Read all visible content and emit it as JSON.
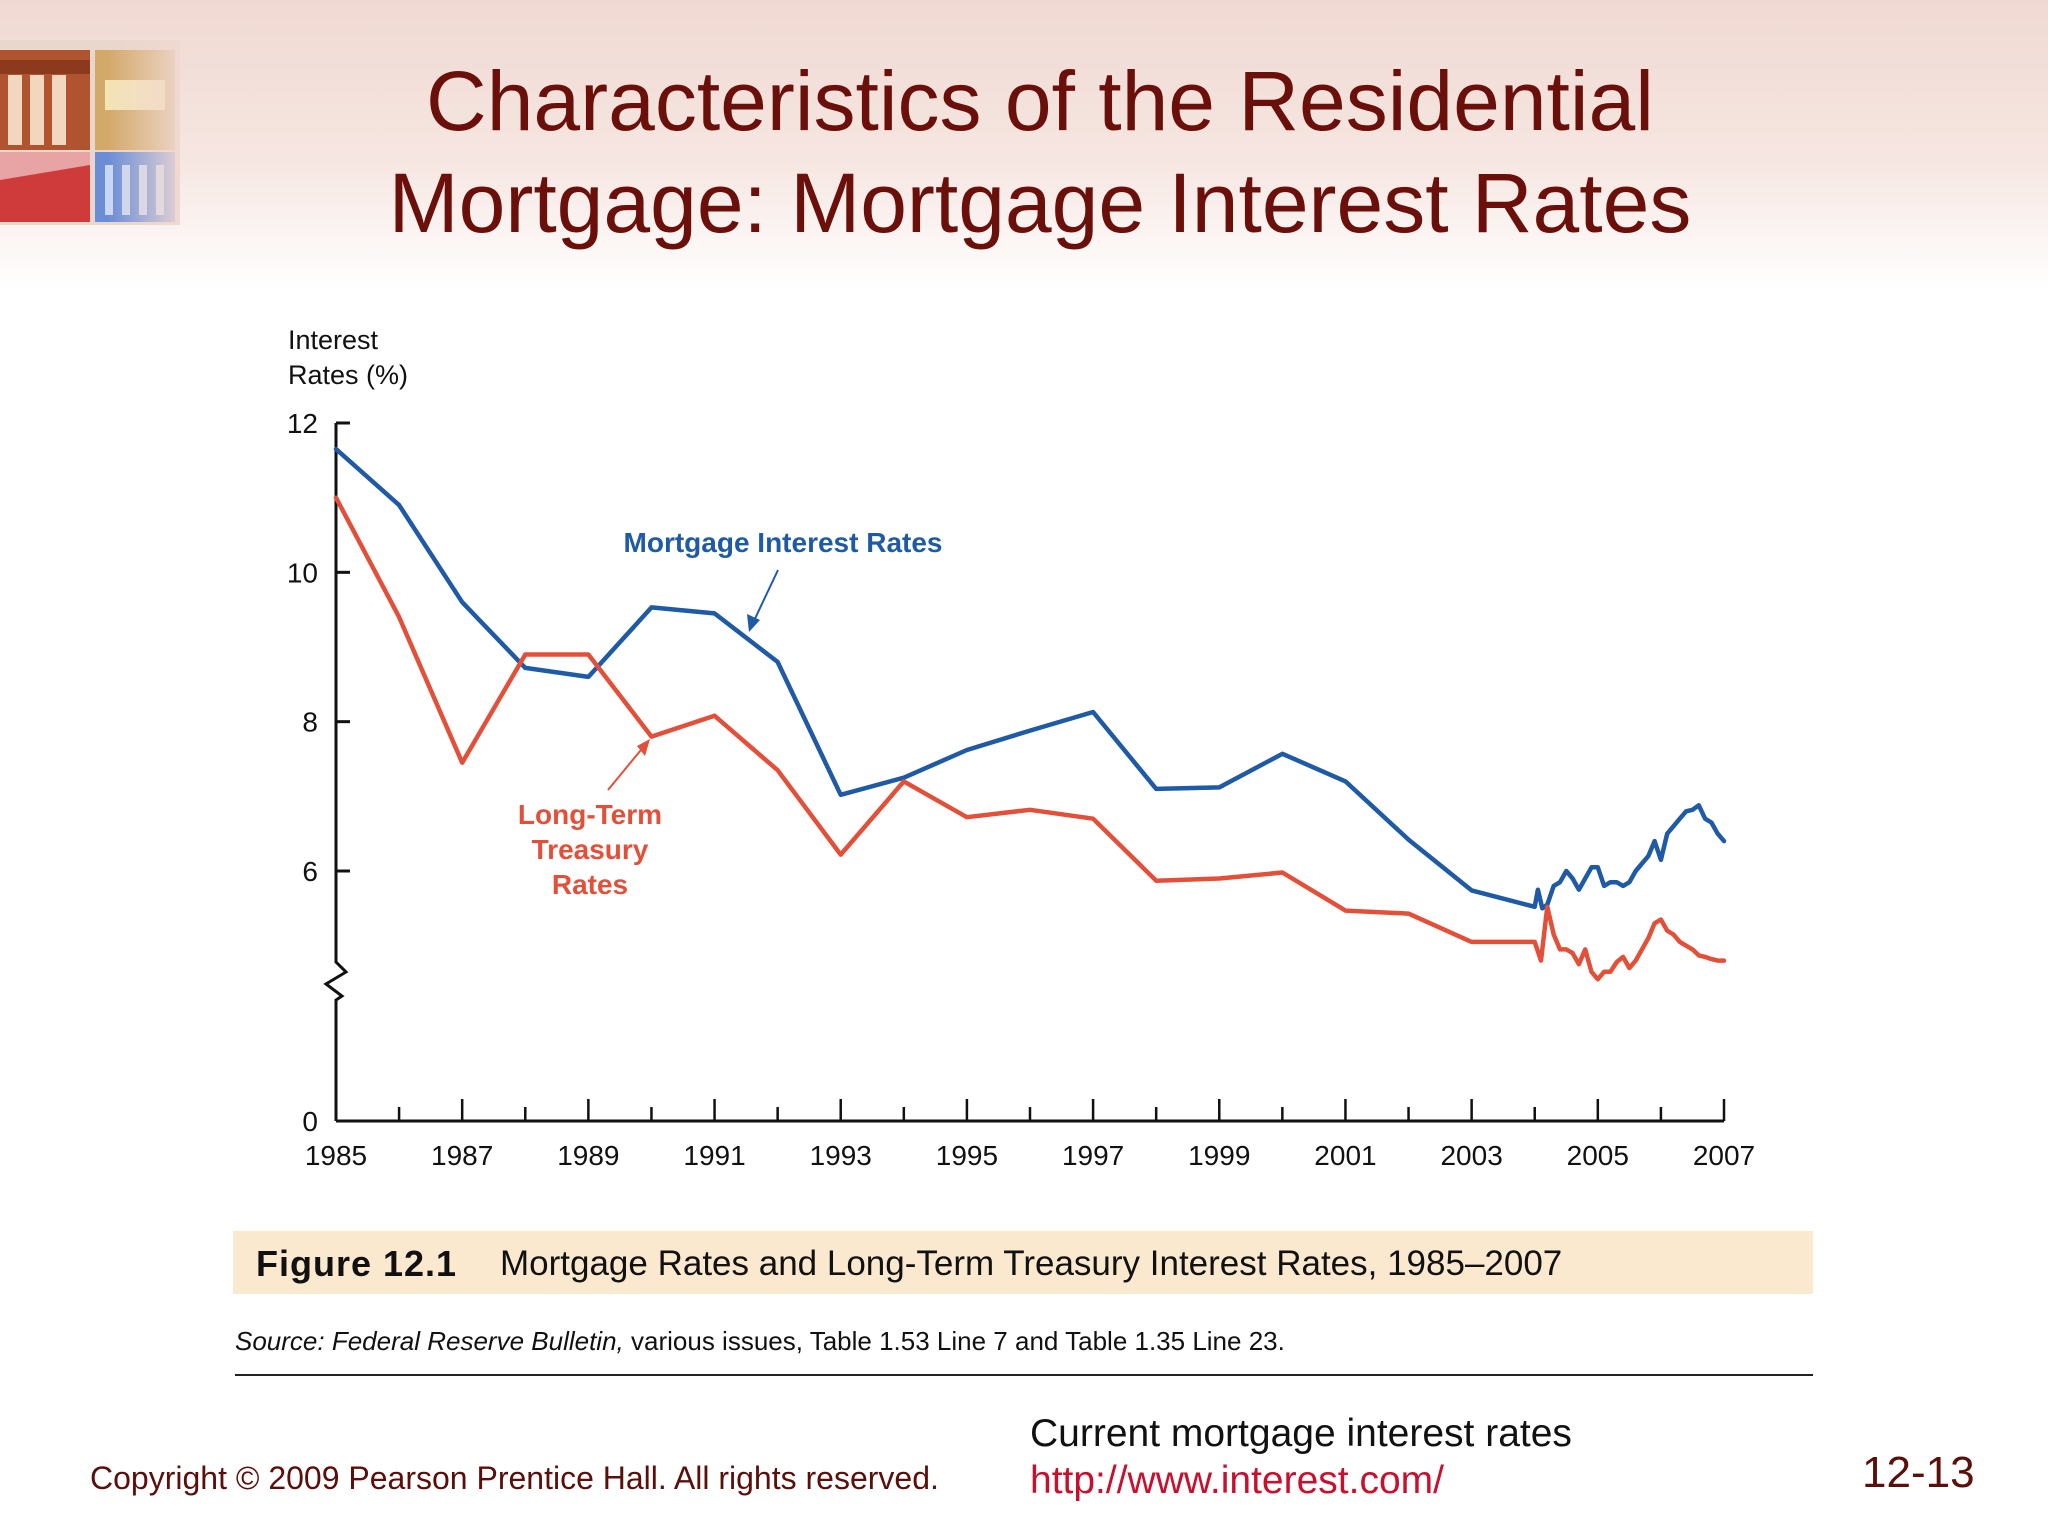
{
  "slide": {
    "title_line1": "Characteristics of the Residential",
    "title_line2": "Mortgage: Mortgage Interest Rates",
    "copyright": "Copyright © 2009 Pearson Prentice Hall. All rights reserved.",
    "note": "Current mortgage interest rates",
    "link": "http://www.interest.com/",
    "page_number": "12-13"
  },
  "figure": {
    "label": "Figure 12.1",
    "caption": "Mortgage Rates and Long-Term Treasury Interest Rates, 1985–2007",
    "source_prefix": "Source:",
    "source_italic": "Federal Reserve Bulletin,",
    "source_rest": "various issues, Table 1.53 Line 7 and Table 1.35 Line 23."
  },
  "colors": {
    "mortgage": "#1f5aa6",
    "treasury": "#e3503a",
    "title": "#6b0f0a"
  },
  "chart_data": {
    "type": "line",
    "ylabel_line1": "Interest",
    "ylabel_line2": "Rates (%)",
    "yticks": [
      0,
      6,
      8,
      10,
      12
    ],
    "axis_break": "between 0 and 6",
    "xticks": [
      "1985",
      "1987",
      "1989",
      "1991",
      "1993",
      "1995",
      "1997",
      "1999",
      "2001",
      "2003",
      "2005",
      "2007"
    ],
    "ylim": [
      0,
      12
    ],
    "xlim": [
      1985,
      2007
    ],
    "series": [
      {
        "name": "Mortgage Interest Rates",
        "color": "#1f5aa6",
        "x": [
          1985,
          1986,
          1987,
          1988,
          1989,
          1990,
          1991,
          1992,
          1993,
          1994,
          1995,
          1996,
          1997,
          1998,
          1999,
          2000,
          2001,
          2002,
          2003,
          2004.0,
          2004.05,
          2004.12,
          2004.2,
          2004.3,
          2004.4,
          2004.5,
          2004.6,
          2004.7,
          2004.8,
          2004.9,
          2005.0,
          2005.1,
          2005.2,
          2005.3,
          2005.4,
          2005.5,
          2005.6,
          2005.7,
          2005.8,
          2005.9,
          2006.0,
          2006.1,
          2006.2,
          2006.3,
          2006.4,
          2006.5,
          2006.6,
          2006.7,
          2006.8,
          2006.9,
          2007.0
        ],
        "y": [
          11.65,
          10.9,
          9.6,
          8.72,
          8.6,
          9.53,
          9.45,
          8.8,
          7.02,
          7.25,
          7.62,
          7.88,
          8.13,
          7.1,
          7.12,
          7.57,
          7.2,
          6.42,
          5.74,
          5.52,
          5.75,
          5.5,
          5.55,
          5.8,
          5.85,
          6.0,
          5.9,
          5.75,
          5.9,
          6.05,
          6.05,
          5.8,
          5.85,
          5.85,
          5.8,
          5.85,
          6.0,
          6.1,
          6.2,
          6.4,
          6.15,
          6.5,
          6.6,
          6.7,
          6.8,
          6.82,
          6.88,
          6.7,
          6.65,
          6.5,
          6.4
        ]
      },
      {
        "name": "Long-Term Treasury Rates",
        "color": "#e3503a",
        "x": [
          1985,
          1986,
          1987,
          1988,
          1989,
          1990,
          1991,
          1992,
          1993,
          1994,
          1995,
          1996,
          1997,
          1998,
          1999,
          2000,
          2001,
          2002,
          2003,
          2004.0,
          2004.1,
          2004.2,
          2004.3,
          2004.4,
          2004.5,
          2004.6,
          2004.7,
          2004.8,
          2004.9,
          2005.0,
          2005.1,
          2005.2,
          2005.3,
          2005.4,
          2005.5,
          2005.6,
          2005.7,
          2005.8,
          2005.9,
          2006.0,
          2006.1,
          2006.2,
          2006.3,
          2006.4,
          2006.5,
          2006.6,
          2006.7,
          2006.8,
          2006.9,
          2007.0
        ],
        "y": [
          11.0,
          9.4,
          7.45,
          8.9,
          8.9,
          7.8,
          8.08,
          7.35,
          6.22,
          7.2,
          6.72,
          6.82,
          6.7,
          5.87,
          5.9,
          5.98,
          5.47,
          5.43,
          5.05,
          5.05,
          4.8,
          5.52,
          5.15,
          4.95,
          4.95,
          4.9,
          4.75,
          4.95,
          4.65,
          4.55,
          4.65,
          4.65,
          4.78,
          4.85,
          4.7,
          4.8,
          4.95,
          5.1,
          5.3,
          5.35,
          5.2,
          5.15,
          5.05,
          5.0,
          4.95,
          4.87,
          4.85,
          4.82,
          4.8,
          4.8
        ]
      }
    ],
    "annotations": [
      {
        "text": "Mortgage Interest Rates",
        "series": 0
      },
      {
        "text_line1": "Long-Term",
        "text_line2": "Treasury",
        "text_line3": "Rates",
        "series": 1
      }
    ]
  }
}
